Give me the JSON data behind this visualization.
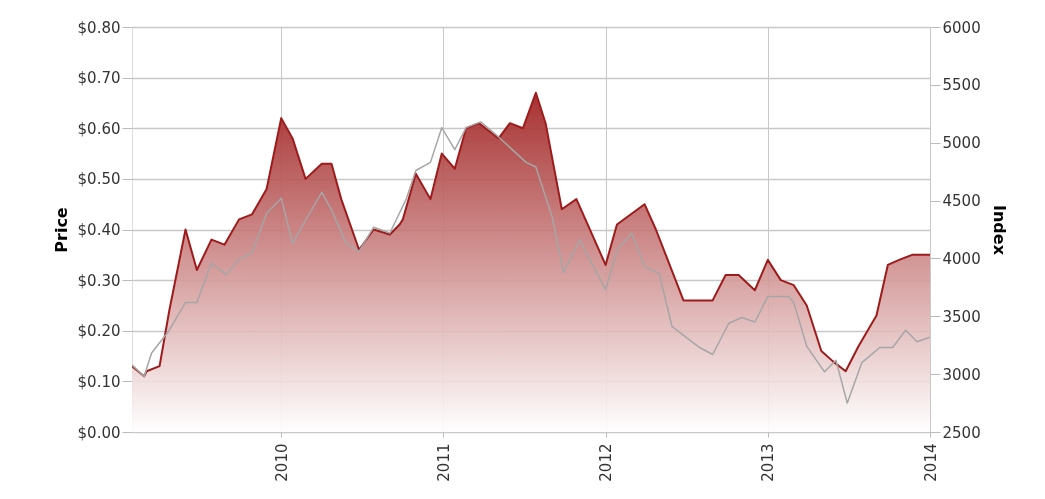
{
  "chart_data": {
    "type": "area",
    "ylabel": "Price",
    "y2label": "Index",
    "xlim": [
      2009.08,
      2014.0
    ],
    "xticks": [
      2010,
      2011,
      2012,
      2013,
      2014
    ],
    "ylim": [
      0,
      0.8
    ],
    "yticks": [
      {
        "value": 0,
        "label": "$0.00"
      },
      {
        "value": 0.1,
        "label": "$0.10"
      },
      {
        "value": 0.2,
        "label": "$0.20"
      },
      {
        "value": 0.3,
        "label": "$0.30"
      },
      {
        "value": 0.4,
        "label": "$0.40"
      },
      {
        "value": 0.5,
        "label": "$0.50"
      },
      {
        "value": 0.6,
        "label": "$0.60"
      },
      {
        "value": 0.7,
        "label": "$0.70"
      },
      {
        "value": 0.8,
        "label": "$0.80"
      }
    ],
    "y2lim": [
      2500,
      6000
    ],
    "y2ticks": [
      2500,
      3000,
      3500,
      4000,
      4500,
      5000,
      5500,
      6000
    ],
    "grid": true,
    "series": [
      {
        "color": "#9e1b1b",
        "x": [
          2009.08,
          2009.155,
          2009.17,
          2009.25,
          2009.31,
          2009.41,
          2009.48,
          2009.57,
          2009.65,
          2009.74,
          2009.82,
          2009.91,
          2010.0,
          2010.07,
          2010.15,
          2010.25,
          2010.31,
          2010.37,
          2010.48,
          2010.57,
          2010.67,
          2010.73,
          2010.75,
          2010.83,
          2010.92,
          2010.99,
          2011.07,
          2011.14,
          2011.22,
          2011.34,
          2011.41,
          2011.49,
          2011.57,
          2011.63,
          2011.73,
          2011.82,
          2012.0,
          2012.07,
          2012.24,
          2012.31,
          2012.48,
          2012.66,
          2012.74,
          2012.82,
          2012.92,
          2013.0,
          2013.08,
          2013.16,
          2013.24,
          2013.33,
          2013.4,
          2013.48,
          2013.56,
          2013.67,
          2013.74,
          2013.81,
          2013.89,
          2014.0
        ],
        "values": [
          0.13,
          0.11,
          0.12,
          0.13,
          0.24,
          0.4,
          0.32,
          0.38,
          0.37,
          0.42,
          0.43,
          0.48,
          0.62,
          0.58,
          0.5,
          0.53,
          0.53,
          0.46,
          0.36,
          0.4,
          0.39,
          0.41,
          0.42,
          0.51,
          0.46,
          0.55,
          0.52,
          0.6,
          0.61,
          0.58,
          0.61,
          0.6,
          0.67,
          0.61,
          0.44,
          0.46,
          0.33,
          0.41,
          0.45,
          0.4,
          0.26,
          0.26,
          0.31,
          0.31,
          0.28,
          0.34,
          0.3,
          0.29,
          0.25,
          0.16,
          0.14,
          0.12,
          0.17,
          0.23,
          0.33,
          0.34,
          0.35,
          0.35
        ]
      },
      {
        "type": "line",
        "axis": "y2",
        "color": "#a6a6a6",
        "x": [
          2009.08,
          2009.155,
          2009.2,
          2009.31,
          2009.41,
          2009.48,
          2009.57,
          2009.66,
          2009.74,
          2009.82,
          2009.91,
          2010.0,
          2010.07,
          2010.15,
          2010.25,
          2010.31,
          2010.4,
          2010.48,
          2010.57,
          2010.67,
          2010.77,
          2010.83,
          2010.92,
          2010.99,
          2011.07,
          2011.14,
          2011.23,
          2011.34,
          2011.51,
          2011.57,
          2011.67,
          2011.74,
          2011.84,
          2012.0,
          2012.07,
          2012.16,
          2012.24,
          2012.33,
          2012.41,
          2012.58,
          2012.66,
          2012.76,
          2012.84,
          2012.92,
          2013.0,
          2013.13,
          2013.16,
          2013.24,
          2013.35,
          2013.42,
          2013.49,
          2013.58,
          2013.69,
          2013.77,
          2013.85,
          2013.92,
          2014.0
        ],
        "values": [
          3080,
          2980,
          3180,
          3380,
          3620,
          3620,
          3960,
          3860,
          3990,
          4050,
          4390,
          4520,
          4130,
          4330,
          4570,
          4420,
          4130,
          4060,
          4270,
          4220,
          4510,
          4760,
          4830,
          5130,
          4940,
          5130,
          5180,
          5050,
          4830,
          4790,
          4360,
          3880,
          4160,
          3730,
          4070,
          4220,
          3930,
          3870,
          3410,
          3230,
          3170,
          3440,
          3490,
          3450,
          3670,
          3670,
          3620,
          3240,
          3020,
          3120,
          2750,
          3100,
          3230,
          3230,
          3380,
          3280,
          3320
        ]
      }
    ]
  }
}
